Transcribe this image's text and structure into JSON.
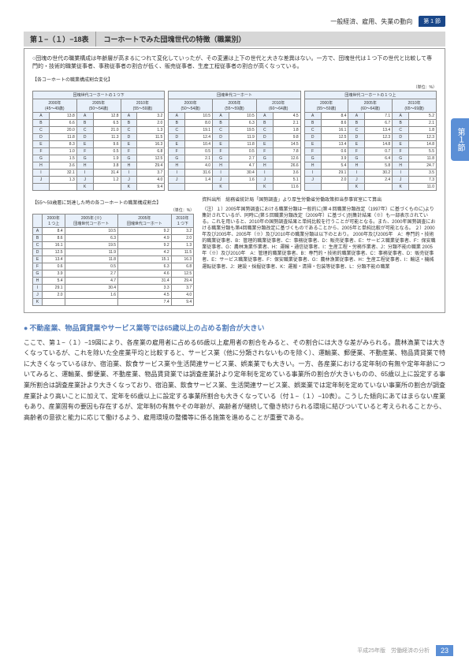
{
  "header": {
    "text": "一般経済、雇用、失業の動向",
    "tag": "第 1 節"
  },
  "sideTab": "第１節",
  "title": {
    "no": "第１−（１）−18表",
    "text": "コーホートでみた団塊世代の特徴（職業別）"
  },
  "box": {
    "lead": "○団塊の世代の職業構成は年齢層が高まるにつれて変化していったが、その変遷は上下の世代と大きな差異はない。一方で、団塊世代は１つ下の世代と比較して専門的・技術的職業従事者、事務従事者の割合が低く、販売従事者、生産工程従事者の割合が高くなっている。",
    "subLabel1": "【各コーホートの職業構成割合変化】",
    "subLabel2": "【55〜59歳層に到達した時の各コーホートの職業構成割合】",
    "unit": "（単位：%）"
  },
  "topTables": [
    {
      "title": "団塊世代コーホートの１つ下",
      "yearCols": [
        {
          "y": "2000年",
          "a": "(45〜49歳)"
        },
        {
          "y": "2005年",
          "a": "(50〜54歳)"
        },
        {
          "y": "2010年",
          "a": "(55〜59歳)"
        }
      ],
      "rows": [
        [
          "A",
          "13.8",
          "A",
          "12.8",
          "A",
          "3.2"
        ],
        [
          "B",
          "6.6",
          "B",
          "6.5",
          "B",
          "2.0"
        ],
        [
          "C",
          "20.0",
          "C",
          "21.0",
          "C",
          "1.3"
        ],
        [
          "D",
          "11.8",
          "D",
          "11.3",
          "D",
          "11.5"
        ],
        [
          "E",
          "8.3",
          "E",
          "9.6",
          "E",
          "16.3"
        ],
        [
          "F",
          "1.0",
          "F",
          "0.5",
          "F",
          "6.8"
        ],
        [
          "G",
          "1.5",
          "G",
          "1.9",
          "G",
          "12.5"
        ],
        [
          "H",
          "3.6",
          "H",
          "3.8",
          "H",
          "29.4"
        ],
        [
          "I",
          "32.1",
          "I",
          "31.4",
          "I",
          "3.7"
        ],
        [
          "J",
          "1.3",
          "J",
          "1.2",
          "J",
          "4.0"
        ],
        [
          "",
          "",
          "K",
          "",
          "K",
          "9.4"
        ]
      ]
    },
    {
      "title": "団塊世代コーホート",
      "yearCols": [
        {
          "y": "2000年",
          "a": "(50〜54歳)"
        },
        {
          "y": "2005年",
          "a": "(55〜59歳)"
        },
        {
          "y": "2010年",
          "a": "(60〜64歳)"
        }
      ],
      "rows": [
        [
          "A",
          "10.5",
          "A",
          "10.5",
          "A",
          "4.5"
        ],
        [
          "B",
          "8.0",
          "B",
          "6.3",
          "B",
          "2.1"
        ],
        [
          "C",
          "19.1",
          "C",
          "19.5",
          "C",
          "1.8"
        ],
        [
          "D",
          "12.4",
          "D",
          "11.9",
          "D",
          "9.8"
        ],
        [
          "E",
          "10.4",
          "E",
          "11.8",
          "E",
          "14.5"
        ],
        [
          "F",
          "0.5",
          "F",
          "0.5",
          "F",
          "7.8"
        ],
        [
          "G",
          "2.1",
          "G",
          "2.7",
          "G",
          "12.6"
        ],
        [
          "H",
          "4.0",
          "H",
          "4.7",
          "H",
          "26.6"
        ],
        [
          "I",
          "31.6",
          "I",
          "30.4",
          "I",
          "3.6"
        ],
        [
          "J",
          "1.4",
          "J",
          "1.6",
          "J",
          "5.1"
        ],
        [
          "",
          "",
          "K",
          "",
          "K",
          "11.6"
        ]
      ]
    },
    {
      "title": "団塊世代コーホートの１つ上",
      "yearCols": [
        {
          "y": "2000年",
          "a": "(55〜59歳)"
        },
        {
          "y": "2005年",
          "a": "(60〜64歳)"
        },
        {
          "y": "2010年",
          "a": "(65〜69歳)"
        }
      ],
      "rows": [
        [
          "A",
          "8.4",
          "A",
          "7.1",
          "A",
          "5.2"
        ],
        [
          "B",
          "8.6",
          "B",
          "6.7",
          "B",
          "2.1"
        ],
        [
          "C",
          "16.1",
          "C",
          "13.4",
          "C",
          "1.8"
        ],
        [
          "D",
          "12.5",
          "D",
          "12.3",
          "D",
          "12.3"
        ],
        [
          "E",
          "13.4",
          "E",
          "14.8",
          "E",
          "14.8"
        ],
        [
          "F",
          "0.6",
          "F",
          "0.7",
          "F",
          "5.5"
        ],
        [
          "G",
          "3.9",
          "G",
          "6.4",
          "G",
          "11.8"
        ],
        [
          "H",
          "5.4",
          "H",
          "5.8",
          "H",
          "24.7"
        ],
        [
          "I",
          "29.1",
          "I",
          "30.2",
          "I",
          "3.5"
        ],
        [
          "J",
          "2.0",
          "J",
          "2.4",
          "J",
          "7.3"
        ],
        [
          "",
          "",
          "K",
          "",
          "K",
          "11.0"
        ]
      ]
    }
  ],
  "bottomTable": {
    "cols": [
      {
        "y": "2000年",
        "a": "１つ上"
      },
      {
        "y": "2005年 (※)",
        "a": "団塊世代コーホート"
      },
      {
        "y": "2005年",
        "a": "団塊世代コーホート"
      },
      {
        "y": "2010年",
        "a": "１つ下"
      }
    ],
    "rows": [
      [
        "A",
        "8.4",
        "10.5",
        "9.2",
        "3.2"
      ],
      [
        "B",
        "8.6",
        "6.3",
        "4.9",
        "2.0"
      ],
      [
        "C",
        "16.1",
        "19.5",
        "9.2",
        "1.3"
      ],
      [
        "D",
        "12.5",
        "11.9",
        "4.2",
        "11.5"
      ],
      [
        "E",
        "13.4",
        "11.8",
        "15.1",
        "16.3"
      ],
      [
        "F",
        "0.6",
        "0.5",
        "6.3",
        "6.8"
      ],
      [
        "G",
        "3.9",
        "2.7",
        "4.6",
        "12.5"
      ],
      [
        "H",
        "5.4",
        "4.7",
        "31.4",
        "29.4"
      ],
      [
        "I",
        "29.1",
        "30.4",
        "3.3",
        "3.7"
      ],
      [
        "J",
        "2.0",
        "1.6",
        "4.5",
        "4.0"
      ],
      [
        "K",
        "",
        "",
        "7.4",
        "9.4"
      ]
    ]
  },
  "notes": {
    "src": "資料出所　総務省統計局「国勢調査」より厚生労働省労働政策担当参事官室にて算出",
    "body": "（注）１）2005年国勢調査における職業分類は一般的に(第４回職業分類改定（1997年）に基づくものに)より集計されているが、同時に(第５回職業分類改定（2009年）に基づく)別集計結果（※）も一部表示されている。これを用いると、2010年の国勢調査結果と単純比較を行うことが可能となる。また、2000年国勢調査における職業分類も第4回職業分類改定に基づくものであることから、2005年と単純比較が可能となる。\n２）2000年及び2005年、2005年（※）及び2010年の職業分類は以下のとおり。\n2000年及び2005年　A：専門的・技術的職業従事者、B：管理的職業従事者、C：事務従事者、D：販売従事者、E：サービス職業従事者、F：保安職業従事者、G：農林漁業作業者、H：運輸・通信従事者、I：生産工程・労務作業者、J：分類不能の職業\n2005年（※）及び2010年　A：管理的職業従事者、B：専門的・技術的職業従事者、C：事務従事者、D：販売従事者、E：サービス職業従事者、F：保安職業従事者、G：農林漁業従事者、H：生産工程従事者、I：輸送・機械運転従事者、J：建設・採掘従事者、K：運搬・清掃・包装等従事者、L：分類不能の職業"
  },
  "section": {
    "head": "不動産業、物品賃貸業やサービス業等では65歳以上の占める割合が大きい",
    "body": "ここで、第１−（１）−19図により、各産業の雇用者に占める65歳以上雇用者の割合をみると、その割合には大きな差がみられる。農林漁業では大きくなっているが、これを除いた全産業平均と比較すると、サービス業（他に分類されないものを除く）、運輸業、郵便業、不動産業、物品賃貸業で特に大きくなっているほか、宿泊業、飲食サービス業や生活関連サービス業、娯楽業でも大きい。一方、各産業における定年制の有無や定年年齢についてみると、運輸業、郵便業、不動産業、物品賃貸業では調査産業計より定年制を定めている事業所の割合が大きいものの、65歳以上に設定する事業所割合は調査産業計より大きくなっており、宿泊業、飲食サービス業、生活関連サービス業、娯楽業では定年制を定めていない事業所の割合が調査産業計より高いことに加えて、定年を65歳以上に設定する事業所割合も大きくなっている（付１−（１）−10表）。こうした傾向にあてはまらない産業もあり、産業固有の要因も存在するが、定年制の有無やその年齢が、高齢者が継続して働き続けられる環境に結びついていると考えられることから、高齢者の意欲と能力に応じて働けるよう、雇用環境の整備等に係る施策を進めることが重要である。"
  },
  "footer": {
    "text": "平成25年版　労働経済の分析",
    "page": "23"
  },
  "colors": {
    "accent": "#5b8fd6",
    "heading": "#557fbc",
    "thBg": "#e8f0fa",
    "border": "#888"
  }
}
